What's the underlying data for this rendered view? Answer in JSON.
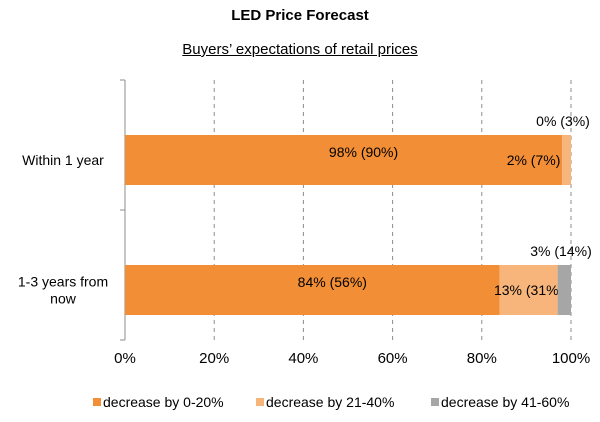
{
  "chart_data": {
    "type": "bar",
    "orientation": "horizontal",
    "stacked": true,
    "title": "LED Price Forecast",
    "subtitle": "Buyers’ expectations of retail prices",
    "categories": [
      "Within 1 year",
      "1-3 years from\nnow"
    ],
    "series": [
      {
        "name": "decrease by 0-20%",
        "color": "#f28e35",
        "values": [
          98,
          84
        ],
        "labels": [
          "98% (90%)",
          "84% (56%)"
        ]
      },
      {
        "name": "decrease by 21-40%",
        "color": "#f7b57b",
        "values": [
          2,
          13
        ],
        "labels": [
          "2% (7%)",
          "13% (31%)"
        ]
      },
      {
        "name": "decrease by 41-60%",
        "color": "#a6a6a6",
        "values": [
          0,
          3
        ],
        "labels": [
          "0% (3%)",
          "3% (14%)"
        ]
      }
    ],
    "xlim": [
      0,
      100
    ],
    "xticks": [
      "0%",
      "20%",
      "40%",
      "60%",
      "80%",
      "100%"
    ],
    "grid": "vertical-dashed",
    "legend_position": "bottom"
  }
}
